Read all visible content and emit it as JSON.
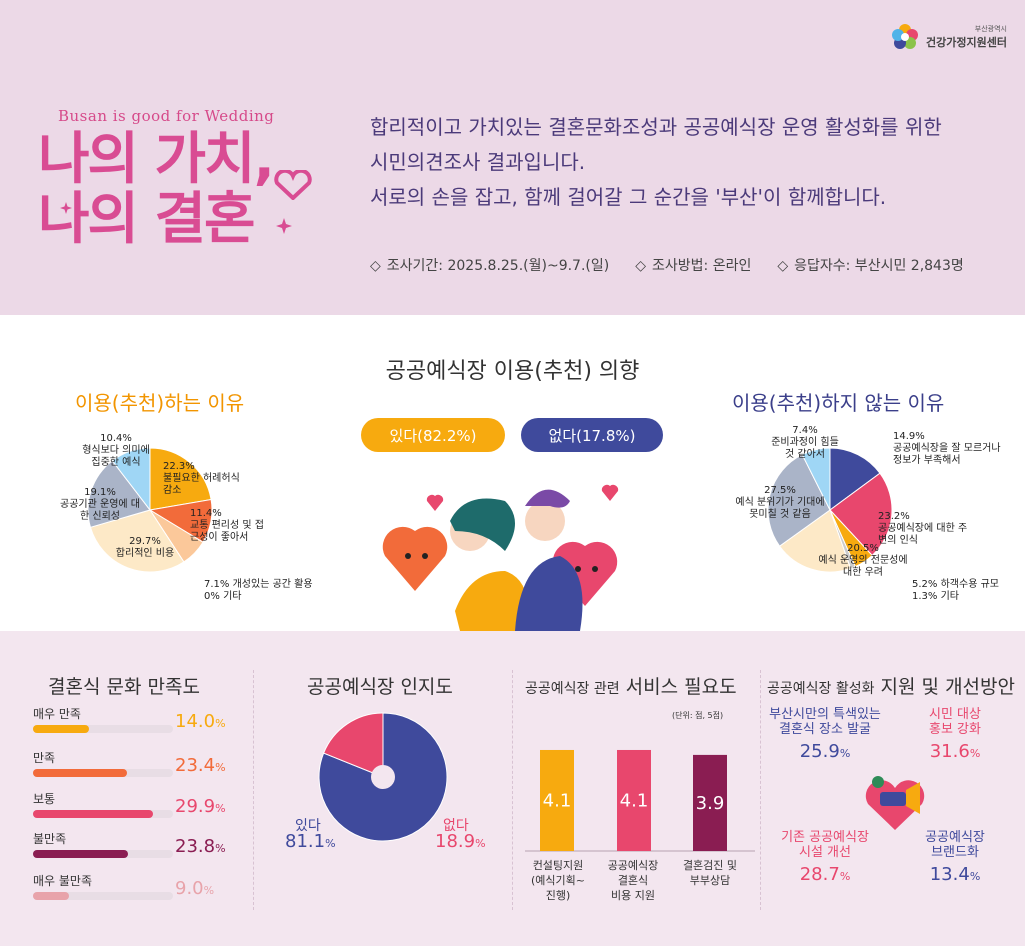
{
  "org": {
    "small": "부산광역시",
    "name": "건강가정지원센터"
  },
  "header": {
    "tagline": "Busan is good for Wedding",
    "title_line1": "나의 가치,",
    "title_line2": "나의 결혼",
    "intro_lines": [
      "합리적이고 가치있는 결혼문화조성과 공공예식장 운영 활성화를 위한",
      "시민의견조사 결과입니다.",
      "서로의 손을 잡고, 함께 걸어갈 그 순간을 '부산'이 함께합니다."
    ],
    "survey_info": [
      {
        "icon": "diamond-icon",
        "text": "조사기간: 2025.8.25.(월)~9.7.(일)"
      },
      {
        "icon": "diamond-icon",
        "text": "조사방법: 온라인"
      },
      {
        "icon": "diamond-icon",
        "text": "응답자수: 부산시민 2,843명"
      }
    ]
  },
  "intent": {
    "title": "공공예식장 이용(추천) 의향",
    "yes_label": "있다(82.2%)",
    "no_label": "없다(17.8%)"
  },
  "colors": {
    "orange": "#f7aa0f",
    "coral": "#f26b3a",
    "cream": "#fde9c7",
    "gray": "#aab4c8",
    "sky": "#9fd6f5",
    "navy": "#3f4a9c",
    "pink": "#e8476d",
    "lightpink": "#e8a3aa",
    "plum": "#8a1d52"
  },
  "chart_data": [
    {
      "type": "pie",
      "title": "이용(추천)하는 이유",
      "slices": [
        {
          "label": "불필요한 허례허식 감소",
          "value": 22.3,
          "color": "#f7aa0f"
        },
        {
          "label": "교통 편리성 및 접근성이 좋아서",
          "value": 11.4,
          "color": "#f26b3a"
        },
        {
          "label": "개성있는 공간 활용",
          "value": 7.1,
          "color": "#fbc89a"
        },
        {
          "label": "기타",
          "value": 0.0,
          "color": "#cccccc"
        },
        {
          "label": "합리적인 비용",
          "value": 29.7,
          "color": "#fde9c7"
        },
        {
          "label": "공공기관 운영에 대한 신뢰성",
          "value": 19.1,
          "color": "#aab4c8"
        },
        {
          "label": "형식보다 의미에 집중한 예식",
          "value": 10.4,
          "color": "#9fd6f5"
        }
      ]
    },
    {
      "type": "pie",
      "title": "이용(추천)하지 않는 이유",
      "slices": [
        {
          "label": "공공예식장을 잘 모르거나 정보가 부족해서",
          "value": 14.9,
          "color": "#3f4a9c"
        },
        {
          "label": "공공예식장에 대한 주변의 인식",
          "value": 23.2,
          "color": "#e8476d"
        },
        {
          "label": "하객수용 규모",
          "value": 5.2,
          "color": "#f7aa0f"
        },
        {
          "label": "기타",
          "value": 1.3,
          "color": "#cccccc"
        },
        {
          "label": "예식 운영의 전문성에 대한 우려",
          "value": 20.5,
          "color": "#fde9c7"
        },
        {
          "label": "예식 분위기가 기대에 못미칠 것 같음",
          "value": 27.5,
          "color": "#aab4c8"
        },
        {
          "label": "준비과정이 힘들 것 같아서",
          "value": 7.4,
          "color": "#9fd6f5"
        }
      ]
    },
    {
      "type": "bar",
      "title": "결혼식 문화 만족도",
      "categories": [
        "매우 만족",
        "만족",
        "보통",
        "불만족",
        "매우 불만족"
      ],
      "values": [
        14.0,
        23.4,
        29.9,
        23.8,
        9.0
      ],
      "colors": [
        "#f7aa0f",
        "#f26b3a",
        "#e8476d",
        "#8a1d52",
        "#e8a3aa"
      ]
    },
    {
      "type": "pie",
      "title": "공공예식장 인지도",
      "slices": [
        {
          "label": "있다",
          "value": 81.1,
          "color": "#3f4a9c"
        },
        {
          "label": "없다",
          "value": 18.9,
          "color": "#e8476d"
        }
      ]
    },
    {
      "type": "bar",
      "title": "공공예식장 관련 서비스 필요도",
      "unit": "(단위: 점, 5점)",
      "categories": [
        "컨설팅지원 (예식기획~진행)",
        "공공예식장 결혼식 비용 지원",
        "결혼검진 및 부부상담"
      ],
      "values": [
        4.1,
        4.1,
        3.9
      ],
      "ylim": [
        0,
        5
      ],
      "colors": [
        "#f7aa0f",
        "#e8476d",
        "#8a1d52"
      ]
    }
  ],
  "satisfaction": {
    "title": "결혼식 문화 만족도",
    "rows": [
      {
        "label": "매우 만족",
        "value": "14.0",
        "color": "#f7aa0f"
      },
      {
        "label": "만족",
        "value": "23.4",
        "color": "#f26b3a"
      },
      {
        "label": "보통",
        "value": "29.9",
        "color": "#e8476d"
      },
      {
        "label": "불만족",
        "value": "23.8",
        "color": "#8a1d52"
      },
      {
        "label": "매우 불만족",
        "value": "9.0",
        "color": "#e8a3aa"
      }
    ]
  },
  "awareness": {
    "title": "공공예식장 인지도",
    "yes_label": "있다",
    "yes_value": "81.1",
    "no_label": "없다",
    "no_value": "18.9"
  },
  "needs": {
    "title_small": "공공예식장 관련",
    "title_big": "서비스 필요도",
    "unit": "(단위: 점, 5점)",
    "bars": [
      {
        "value": "4.1",
        "lines": [
          "컨설팅지원",
          "(예식기획~",
          "진행)"
        ]
      },
      {
        "value": "4.1",
        "lines": [
          "공공예식장",
          "결혼식",
          "비용 지원"
        ]
      },
      {
        "value": "3.9",
        "lines": [
          "결혼검진 및",
          "부부상담"
        ]
      }
    ]
  },
  "improve": {
    "title_small": "공공예식장 활성화",
    "title_big": "지원 및 개선방안",
    "items": [
      {
        "lines": [
          "부산시만의 특색있는",
          "결혼식 장소 발굴"
        ],
        "value": "25.9"
      },
      {
        "lines": [
          "시민 대상",
          "홍보 강화"
        ],
        "value": "31.6"
      },
      {
        "lines": [
          "기존 공공예식장",
          "시설 개선"
        ],
        "value": "28.7"
      },
      {
        "lines": [
          "공공예식장",
          "브랜드화"
        ],
        "value": "13.4"
      }
    ]
  },
  "percent": "%"
}
